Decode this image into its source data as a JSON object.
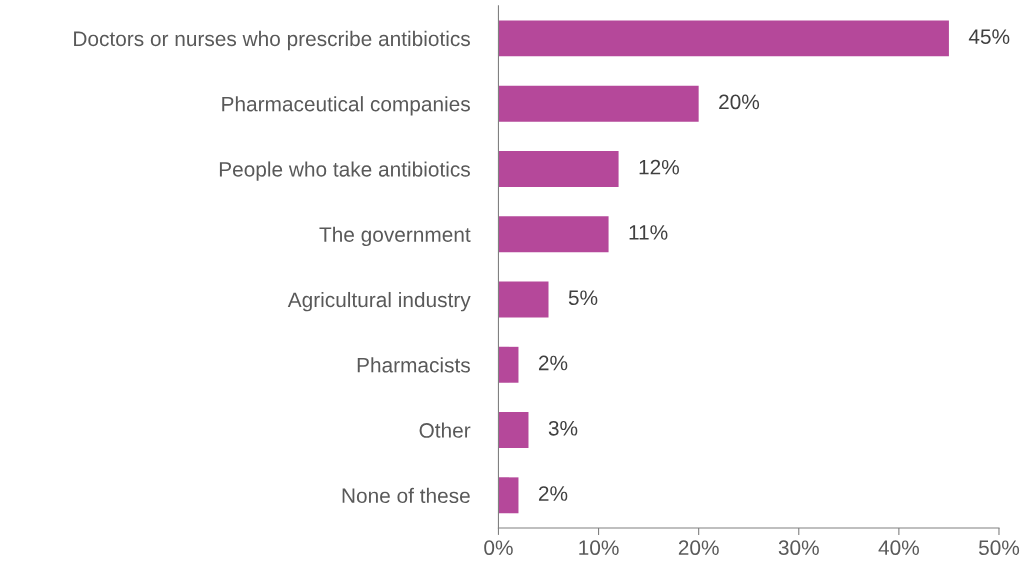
{
  "chart_data": {
    "type": "bar",
    "orientation": "horizontal",
    "categories": [
      "Doctors or nurses who prescribe antibiotics",
      "Pharmaceutical companies",
      "People who take antibiotics",
      "The government",
      "Agricultural industry",
      "Pharmacists",
      "Other",
      "None of these"
    ],
    "values": [
      45,
      20,
      12,
      11,
      5,
      2,
      3,
      2
    ],
    "value_labels": [
      "45%",
      "20%",
      "12%",
      "11%",
      "5%",
      "2%",
      "3%",
      "2%"
    ],
    "color": "#b5489a",
    "xlim": [
      0,
      50
    ],
    "xticks": [
      {
        "value": 0,
        "label": "0%"
      },
      {
        "value": 10,
        "label": "10%"
      },
      {
        "value": 20,
        "label": "20%"
      },
      {
        "value": 30,
        "label": "30%"
      },
      {
        "value": 40,
        "label": "40%"
      },
      {
        "value": 50,
        "label": "50%"
      }
    ],
    "grid": false
  }
}
